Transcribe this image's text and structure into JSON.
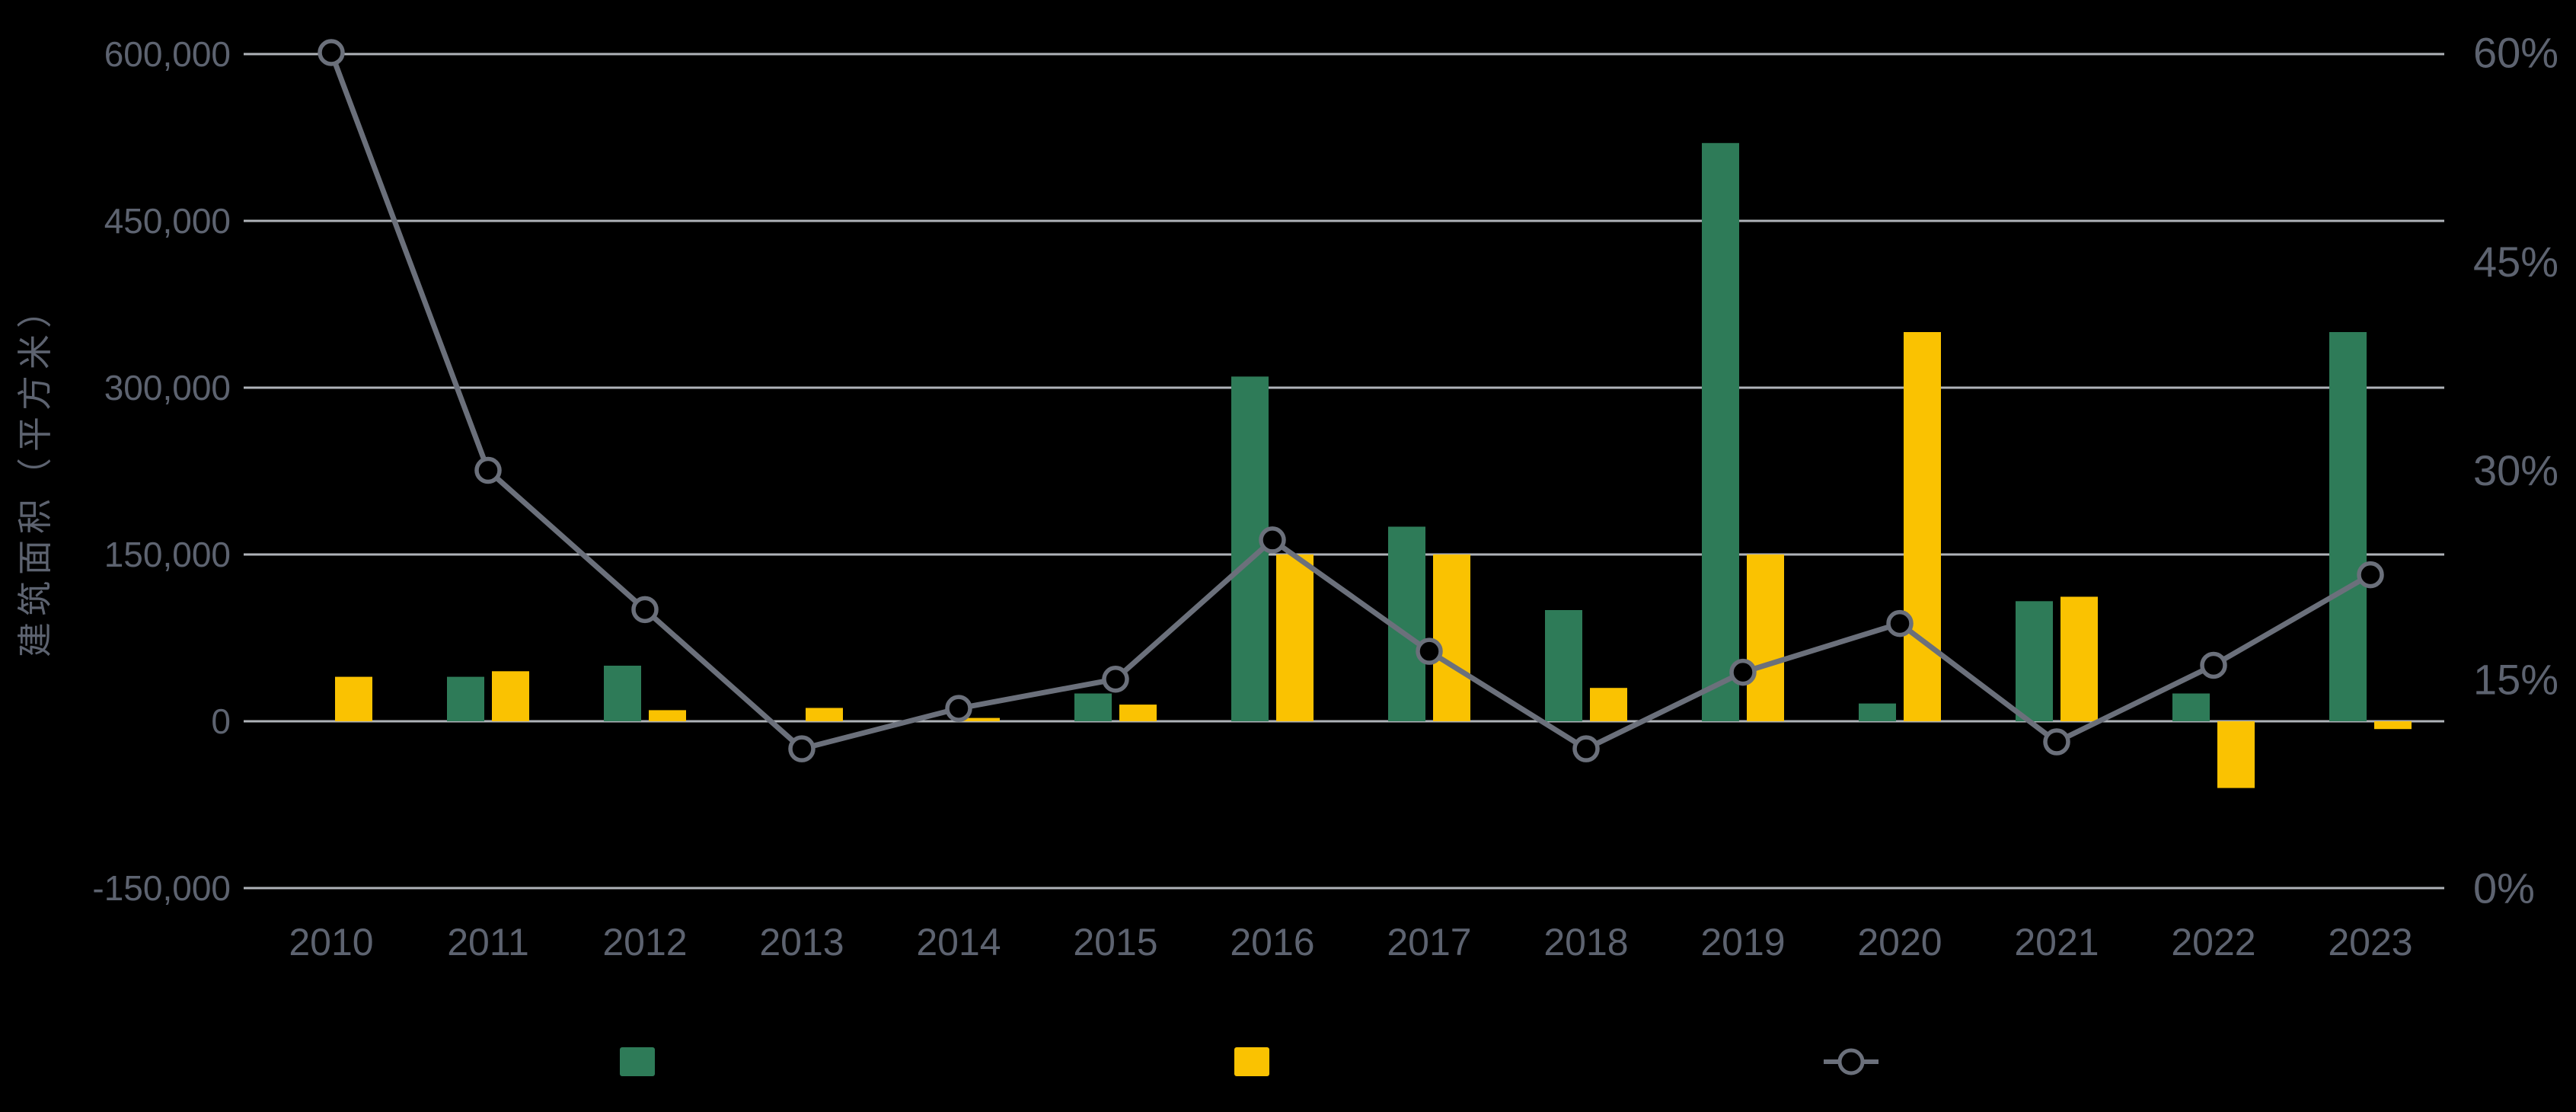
{
  "chart_data": {
    "type": "combo-bar-line",
    "title": "",
    "categories": [
      "2010",
      "2011",
      "2012",
      "2013",
      "2014",
      "2015",
      "2016",
      "2017",
      "2018",
      "2019",
      "2020",
      "2021",
      "2022",
      "2023"
    ],
    "series": [
      {
        "id": "green-bars",
        "type": "bar",
        "legend_label": "",
        "color": "#2E7B58",
        "axis": "left",
        "values": [
          0,
          40000,
          50000,
          0,
          0,
          25000,
          310000,
          175000,
          100000,
          520000,
          16000,
          108000,
          25000,
          350000
        ]
      },
      {
        "id": "yellow-bars",
        "type": "bar",
        "legend_label": "",
        "color": "#FAC201",
        "axis": "left",
        "values": [
          40000,
          45000,
          10000,
          12000,
          3000,
          15000,
          150000,
          150000,
          30000,
          150000,
          350000,
          112000,
          -60000,
          -7000
        ]
      },
      {
        "id": "percent-line",
        "type": "line",
        "legend_label": "",
        "color": "#6B707B",
        "axis": "right",
        "values": [
          60,
          30,
          20,
          10,
          12.9,
          15,
          25,
          17,
          10,
          15.5,
          19,
          10.5,
          16,
          22.5
        ]
      }
    ],
    "left_axis": {
      "title": "建筑面积（平方米）",
      "tick_labels": [
        "600,000",
        "450,000",
        "300,000",
        "150,000",
        "0",
        "-150,000"
      ],
      "tick_values": [
        600000,
        450000,
        300000,
        150000,
        0,
        -150000
      ],
      "min": -150000,
      "max": 600000
    },
    "right_axis": {
      "tick_labels": [
        "60%",
        "45%",
        "30%",
        "15%",
        "0%"
      ],
      "tick_values": [
        60,
        45,
        30,
        15,
        0
      ],
      "min": 0,
      "max": 60
    },
    "grid": {
      "show": true,
      "color": "#AFB3B9"
    },
    "legend": {
      "position": "bottom",
      "items": [
        {
          "swatch": "bar",
          "color": "#2E7B58",
          "label": ""
        },
        {
          "swatch": "bar",
          "color": "#FAC201",
          "label": ""
        },
        {
          "swatch": "line-marker",
          "color": "#6B707B",
          "label": ""
        }
      ]
    },
    "colors": {
      "background": "#000000",
      "axis_text": "#5D6370",
      "grid_line": "#AFB3B9",
      "line_series": "#6B707B"
    }
  }
}
